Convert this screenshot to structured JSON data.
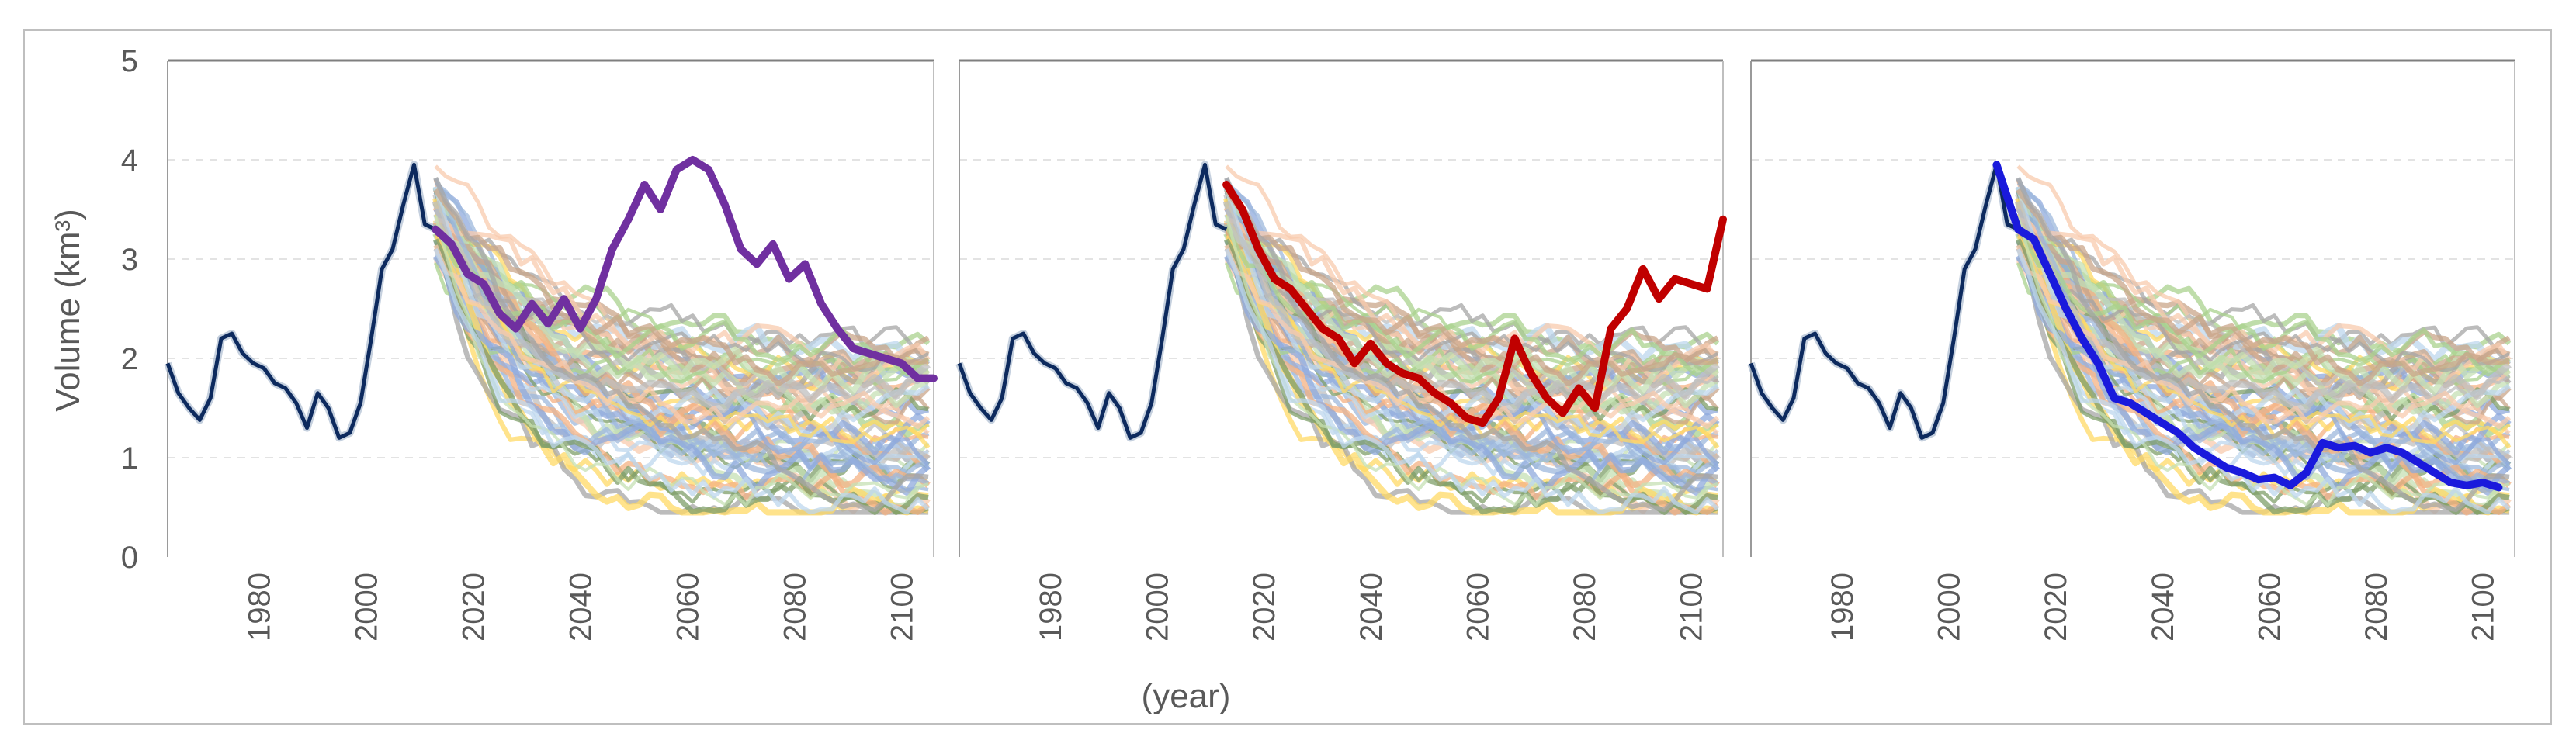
{
  "chart_data": {
    "type": "line",
    "ylabel": "Volume (km³)",
    "xlabel": "(year)",
    "ylim": [
      0,
      5
    ],
    "xlim": [
      1963,
      2106
    ],
    "y_ticks": [
      "0",
      "1",
      "2",
      "3",
      "4",
      "5"
    ],
    "x_ticks": [
      "1980",
      "2000",
      "2020",
      "2040",
      "2060",
      "2080",
      "2100"
    ],
    "grid": "horizontal-dashed",
    "colors": {
      "historical": "#0d2a5e",
      "panel1_highlight": "#7030a0",
      "panel2_highlight": "#c00000",
      "panel3_highlight": "#1a1adc",
      "ensemble_palette": [
        "#9db8dc",
        "#f4b183",
        "#a9d18e",
        "#ffd966",
        "#bfbfbf",
        "#8faadc",
        "#c9a58a",
        "#7f9f6a",
        "#f8cbad",
        "#c5e0b4",
        "#a5a5a5",
        "#bdd7ee"
      ]
    },
    "historical": {
      "x": [
        1963,
        1965,
        1967,
        1969,
        1971,
        1973,
        1975,
        1977,
        1979,
        1981,
        1983,
        1985,
        1987,
        1989,
        1991,
        1993,
        1995,
        1997,
        1999,
        2001,
        2003,
        2005,
        2007,
        2009,
        2011,
        2013
      ],
      "y": [
        1.95,
        1.65,
        1.5,
        1.38,
        1.6,
        2.2,
        2.25,
        2.05,
        1.95,
        1.9,
        1.75,
        1.7,
        1.55,
        1.3,
        1.65,
        1.5,
        1.2,
        1.25,
        1.55,
        2.2,
        2.9,
        3.1,
        3.55,
        3.95,
        3.35,
        3.3
      ]
    },
    "panels": [
      {
        "name": "panel-1",
        "highlight_label": "purple",
        "highlight": {
          "x": [
            2013,
            2016,
            2019,
            2022,
            2025,
            2028,
            2031,
            2034,
            2037,
            2040,
            2043,
            2046,
            2049,
            2052,
            2055,
            2058,
            2061,
            2064,
            2067,
            2070,
            2073,
            2076,
            2079,
            2082,
            2085,
            2088,
            2091,
            2094,
            2097,
            2100,
            2103,
            2106
          ],
          "y": [
            3.3,
            3.15,
            2.85,
            2.75,
            2.45,
            2.3,
            2.55,
            2.35,
            2.6,
            2.3,
            2.6,
            3.1,
            3.4,
            3.75,
            3.5,
            3.9,
            4.0,
            3.9,
            3.55,
            3.1,
            2.95,
            3.15,
            2.8,
            2.95,
            2.55,
            2.3,
            2.1,
            2.05,
            2.0,
            1.95,
            1.8,
            1.8
          ]
        }
      },
      {
        "name": "panel-2",
        "highlight_label": "red",
        "highlight": {
          "x": [
            2013,
            2016,
            2019,
            2022,
            2025,
            2028,
            2031,
            2034,
            2037,
            2040,
            2043,
            2046,
            2049,
            2052,
            2055,
            2058,
            2061,
            2064,
            2067,
            2070,
            2073,
            2076,
            2079,
            2082,
            2085,
            2088,
            2091,
            2094,
            2097,
            2100,
            2103,
            2106
          ],
          "y": [
            3.75,
            3.5,
            3.1,
            2.8,
            2.7,
            2.5,
            2.3,
            2.2,
            1.95,
            2.15,
            1.95,
            1.85,
            1.8,
            1.65,
            1.55,
            1.4,
            1.35,
            1.6,
            2.2,
            1.85,
            1.6,
            1.45,
            1.7,
            1.5,
            2.3,
            2.5,
            2.9,
            2.6,
            2.8,
            2.75,
            2.7,
            3.4
          ]
        }
      },
      {
        "name": "panel-3",
        "highlight_label": "blue",
        "highlight": {
          "x": [
            2009,
            2013,
            2016,
            2019,
            2022,
            2025,
            2028,
            2031,
            2034,
            2037,
            2040,
            2043,
            2046,
            2049,
            2052,
            2055,
            2058,
            2061,
            2064,
            2067,
            2070,
            2073,
            2076,
            2079,
            2082,
            2085,
            2088,
            2091,
            2094,
            2097,
            2100,
            2103
          ],
          "y": [
            3.95,
            3.3,
            3.2,
            2.85,
            2.5,
            2.2,
            1.95,
            1.6,
            1.55,
            1.45,
            1.35,
            1.25,
            1.1,
            1.0,
            0.9,
            0.85,
            0.78,
            0.8,
            0.72,
            0.85,
            1.15,
            1.1,
            1.12,
            1.05,
            1.1,
            1.05,
            0.95,
            0.85,
            0.75,
            0.72,
            0.75,
            0.7
          ]
        }
      }
    ]
  }
}
